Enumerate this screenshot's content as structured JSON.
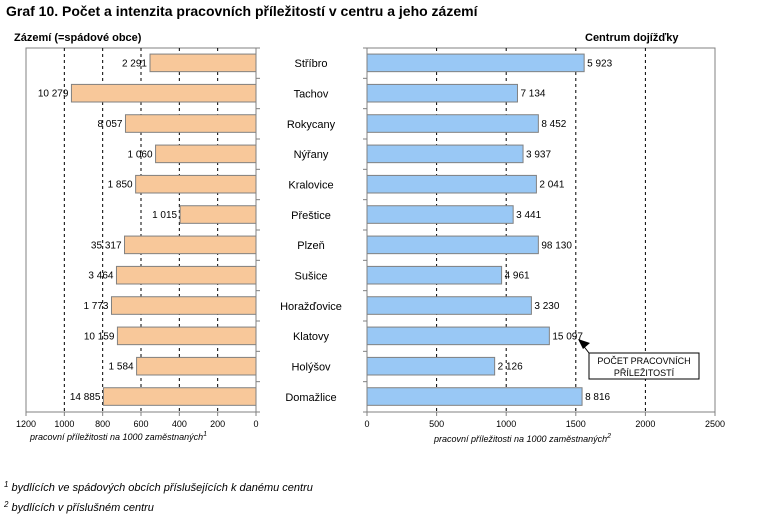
{
  "title": "Graf 10. Počet a intenzita pracovních příležitostí v centru a jeho zázemí",
  "chart_data": [
    {
      "type": "bar",
      "orientation": "horizontal",
      "reversed_axis": true,
      "title": "Zázemí (=spádové obce)",
      "xlabel": "pracovní příležitosti na 1000 zaměstnaných",
      "xlabel_sup": "1",
      "xlim": [
        0,
        1200
      ],
      "ticks": [
        0,
        200,
        400,
        600,
        800,
        1000,
        1200
      ],
      "grid": "vertical dashed",
      "color": "#F8C89A",
      "categories": [
        "Stříbro",
        "Tachov",
        "Rokycany",
        "Nýřany",
        "Kralovice",
        "Přeštice",
        "Plzeň",
        "Sušice",
        "Horažďovice",
        "Klatovy",
        "Holýšov",
        "Domažlice"
      ],
      "values": [
        553,
        963,
        681,
        524,
        628,
        396,
        686,
        728,
        754,
        723,
        623,
        796
      ],
      "data_labels": [
        "2 291",
        "10 279",
        "8 057",
        "1 060",
        "1 850",
        "1 015",
        "35 317",
        "3 464",
        "1 773",
        "10 159",
        "1 584",
        "14 885"
      ]
    },
    {
      "type": "bar",
      "orientation": "horizontal",
      "title": "Centrum dojížďky",
      "xlabel": "pracovní příležitosti na 1000 zaměstnaných",
      "xlabel_sup": "2",
      "xlim": [
        0,
        2500
      ],
      "ticks": [
        0,
        500,
        1000,
        1500,
        2000,
        2500
      ],
      "grid": "vertical dashed",
      "color": "#99C8F5",
      "categories": [
        "Stříbro",
        "Tachov",
        "Rokycany",
        "Nýřany",
        "Kralovice",
        "Přeštice",
        "Plzeň",
        "Sušice",
        "Horažďovice",
        "Klatovy",
        "Holýšov",
        "Domažlice"
      ],
      "values": [
        1560,
        1081,
        1231,
        1121,
        1217,
        1050,
        1231,
        967,
        1181,
        1310,
        917,
        1545
      ],
      "data_labels": [
        "5 923",
        "7 134",
        "8 452",
        "3 937",
        "2 041",
        "3 441",
        "98 130",
        "4 961",
        "3 230",
        "15 097",
        "2 126",
        "8 816"
      ],
      "annotation": "POČET PRACOVNÍCH PŘÍLEŽITOSTÍ",
      "annotation_lines": [
        "POČET PRACOVNÍCH",
        "PŘÍLEŽITOSTÍ"
      ]
    }
  ],
  "footnotes": [
    {
      "mark": "1",
      "text": "bydlících ve spádových obcích příslušejících k danému centru"
    },
    {
      "mark": "2",
      "text": "bydlících v příslušném centru"
    }
  ]
}
